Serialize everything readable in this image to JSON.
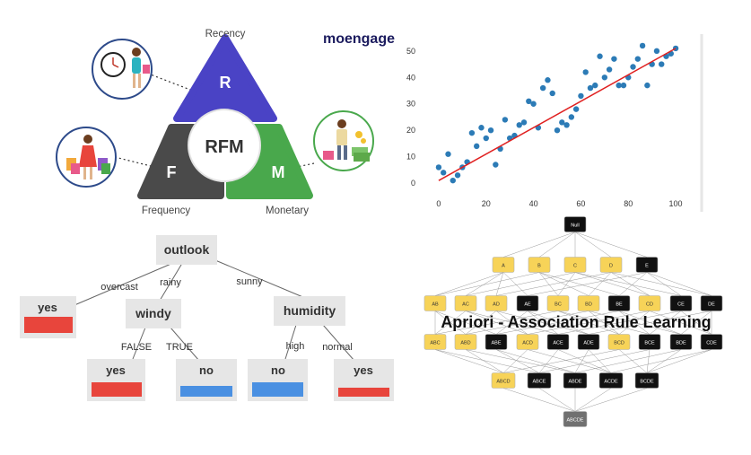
{
  "rfm": {
    "brand": "moengage",
    "center": "RFM",
    "segments": [
      {
        "letter": "R",
        "caption": "Recency",
        "color": "#4a43c5"
      },
      {
        "letter": "F",
        "caption": "Frequency",
        "color": "#4a4a4a"
      },
      {
        "letter": "M",
        "caption": "Monetary",
        "color": "#49a84c"
      }
    ]
  },
  "scatter": {
    "chart_data": {
      "type": "scatter",
      "x_ticks": [
        "0",
        "20",
        "40",
        "60",
        "80",
        "100"
      ],
      "y_ticks": [
        "0",
        "10",
        "20",
        "30",
        "40",
        "50"
      ],
      "xlim": [
        -3,
        103
      ],
      "ylim": [
        -2,
        53
      ],
      "series": [
        {
          "x": [
            0,
            2,
            4,
            6,
            8,
            10,
            12,
            14,
            16,
            18,
            20,
            22,
            24,
            26,
            28,
            30,
            32,
            34,
            36,
            38,
            40,
            42,
            44,
            46,
            48,
            50,
            52,
            54,
            56,
            58,
            60,
            62,
            64,
            66,
            68,
            70,
            72,
            74,
            76,
            78,
            80,
            82,
            84,
            86,
            88,
            90,
            92,
            94,
            96,
            98,
            100
          ],
          "y": [
            6,
            4,
            11,
            1,
            3,
            6,
            8,
            19,
            14,
            21,
            17,
            20,
            7,
            13,
            24,
            17,
            18,
            22,
            23,
            31,
            30,
            21,
            36,
            39,
            34,
            20,
            23,
            22,
            25,
            28,
            33,
            42,
            36,
            37,
            48,
            40,
            43,
            47,
            37,
            37,
            40,
            44,
            47,
            52,
            37,
            45,
            50,
            45,
            48,
            49,
            51
          ]
        }
      ],
      "trend": {
        "x": [
          0,
          100
        ],
        "y": [
          1,
          51
        ]
      }
    }
  },
  "tree": {
    "root": "outlook",
    "edges": {
      "overcast": "overcast",
      "rainy": "rainy",
      "sunny": "sunny",
      "false": "FALSE",
      "true": "TRUE",
      "high": "high",
      "normal": "normal"
    },
    "nodes": {
      "windy": "windy",
      "humidity": "humidity"
    },
    "leaves": {
      "overcast_yes": "yes",
      "false_yes": "yes",
      "true_no": "no",
      "high_no": "no",
      "normal_yes": "yes"
    },
    "colors": {
      "yes": "#e8453c",
      "no": "#4a90e2"
    }
  },
  "apriori": {
    "title": "Apriori - Association Rule Learning",
    "null": "Null",
    "l1": [
      "A",
      "B",
      "C",
      "D",
      "E"
    ],
    "l2": [
      "AB",
      "AC",
      "AD",
      "AE",
      "BC",
      "BD",
      "BE",
      "CD",
      "CE",
      "DE"
    ],
    "l3": [
      "ABC",
      "ABD",
      "ABE",
      "ACD",
      "ACE",
      "ADE",
      "BCD",
      "BCE",
      "BDE",
      "CDE"
    ],
    "l4": [
      "ABCD",
      "ABCE",
      "ABDE",
      "ACDE",
      "BCDE"
    ],
    "l5": "ABCDE",
    "colors": {
      "frequent": "#f7d358",
      "infrequent": "#111111",
      "top": "#0f0f0f",
      "bottom": "#707070"
    }
  }
}
